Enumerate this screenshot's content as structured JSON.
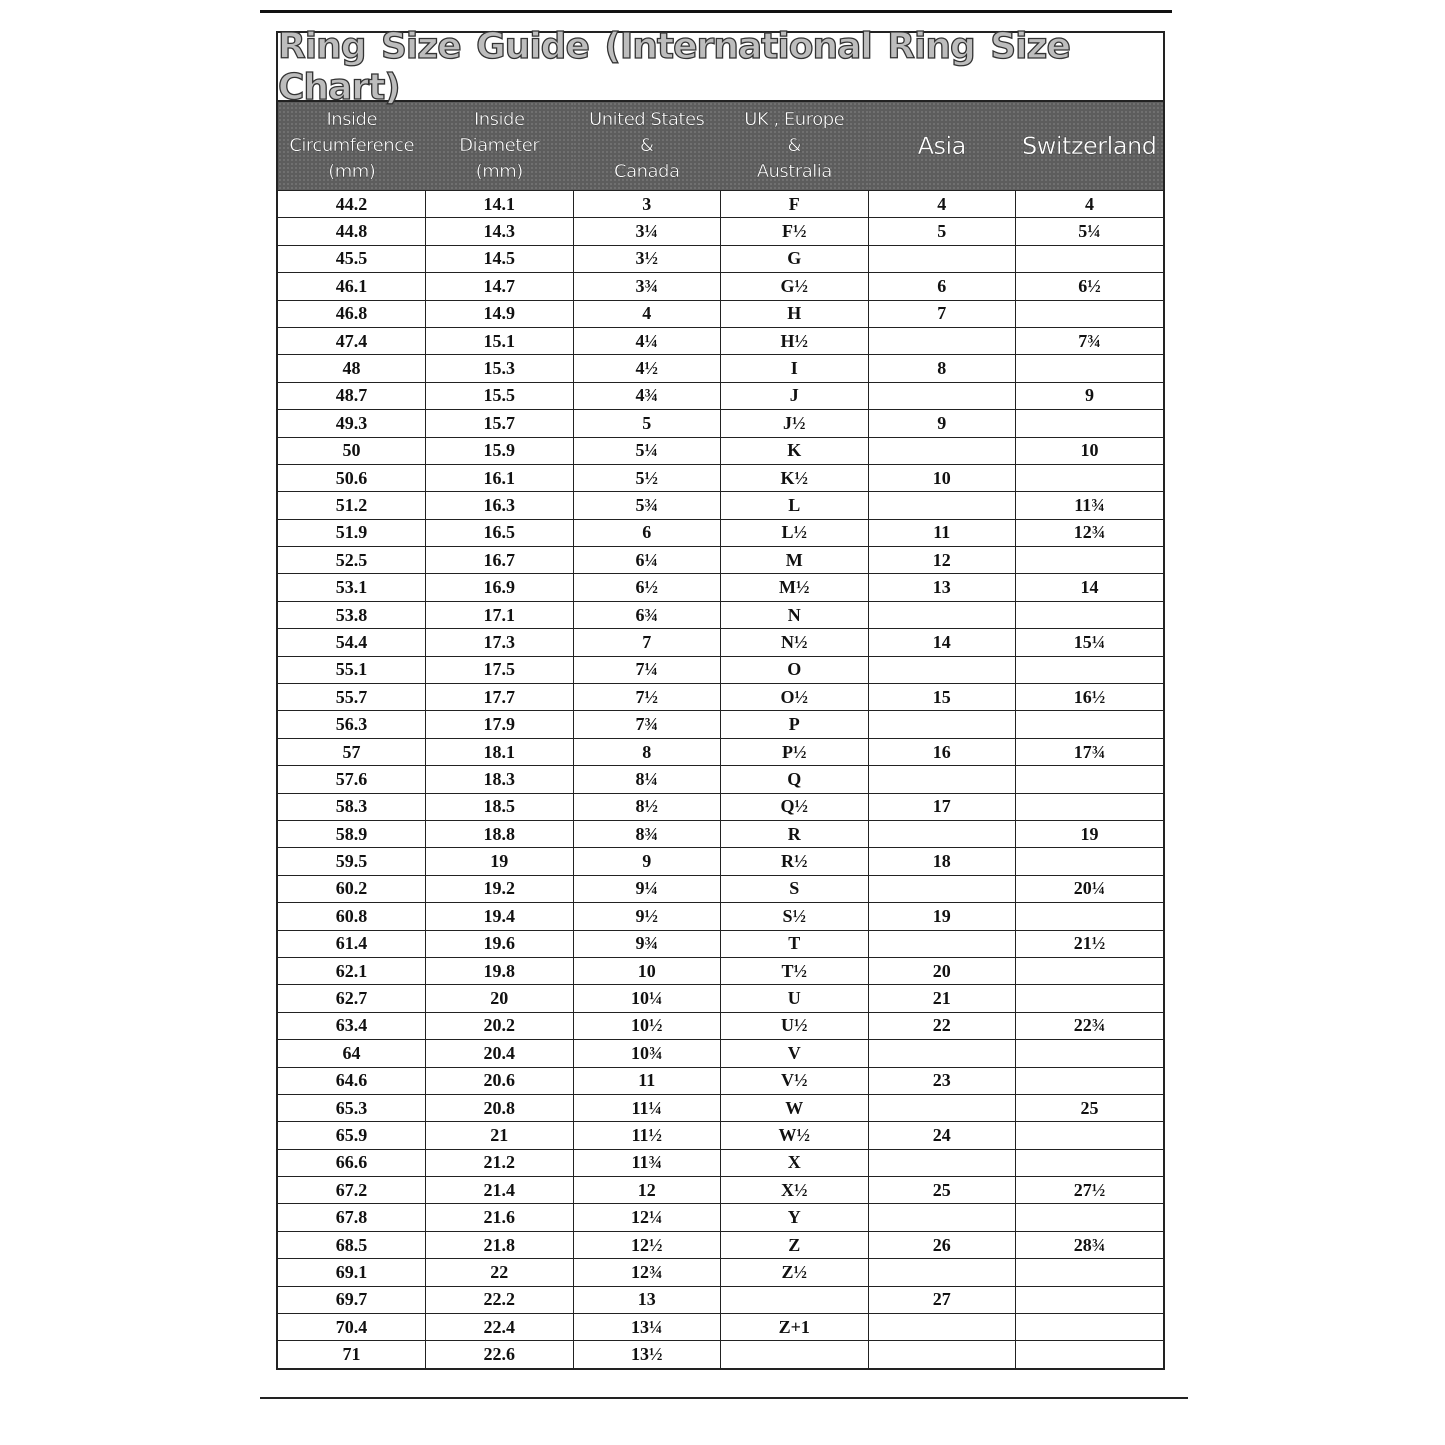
{
  "title": "Ring  Size  Guide (International Ring Size Chart)",
  "headers": [
    [
      "Inside",
      "Circumference",
      "(mm)"
    ],
    [
      "Inside",
      "Diameter",
      "(mm)"
    ],
    [
      "United States",
      "&",
      "Canada"
    ],
    [
      "UK , Europe",
      "&",
      "Australia"
    ],
    [
      "Asia"
    ],
    [
      "Switzerland"
    ]
  ],
  "rows": [
    [
      "44.2",
      "14.1",
      "3",
      "F",
      "4",
      "4"
    ],
    [
      "44.8",
      "14.3",
      "3¼",
      "F½",
      "5",
      "5¼"
    ],
    [
      "45.5",
      "14.5",
      "3½",
      "G",
      "",
      ""
    ],
    [
      "46.1",
      "14.7",
      "3¾",
      "G½",
      "6",
      "6½"
    ],
    [
      "46.8",
      "14.9",
      "4",
      "H",
      "7",
      ""
    ],
    [
      "47.4",
      "15.1",
      "4¼",
      "H½",
      "",
      "7¾"
    ],
    [
      "48",
      "15.3",
      "4½",
      "I",
      "8",
      ""
    ],
    [
      "48.7",
      "15.5",
      "4¾",
      "J",
      "",
      "9"
    ],
    [
      "49.3",
      "15.7",
      "5",
      "J½",
      "9",
      ""
    ],
    [
      "50",
      "15.9",
      "5¼",
      "K",
      "",
      "10"
    ],
    [
      "50.6",
      "16.1",
      "5½",
      "K½",
      "10",
      ""
    ],
    [
      "51.2",
      "16.3",
      "5¾",
      "L",
      "",
      "11¾"
    ],
    [
      "51.9",
      "16.5",
      "6",
      "L½",
      "11",
      "12¾"
    ],
    [
      "52.5",
      "16.7",
      "6¼",
      "M",
      "12",
      ""
    ],
    [
      "53.1",
      "16.9",
      "6½",
      "M½",
      "13",
      "14"
    ],
    [
      "53.8",
      "17.1",
      "6¾",
      "N",
      "",
      ""
    ],
    [
      "54.4",
      "17.3",
      "7",
      "N½",
      "14",
      "15¼"
    ],
    [
      "55.1",
      "17.5",
      "7¼",
      "O",
      "",
      ""
    ],
    [
      "55.7",
      "17.7",
      "7½",
      "O½",
      "15",
      "16½"
    ],
    [
      "56.3",
      "17.9",
      "7¾",
      "P",
      "",
      ""
    ],
    [
      "57",
      "18.1",
      "8",
      "P½",
      "16",
      "17¾"
    ],
    [
      "57.6",
      "18.3",
      "8¼",
      "Q",
      "",
      ""
    ],
    [
      "58.3",
      "18.5",
      "8½",
      "Q½",
      "17",
      ""
    ],
    [
      "58.9",
      "18.8",
      "8¾",
      "R",
      "",
      "19"
    ],
    [
      "59.5",
      "19",
      "9",
      "R½",
      "18",
      ""
    ],
    [
      "60.2",
      "19.2",
      "9¼",
      "S",
      "",
      "20¼"
    ],
    [
      "60.8",
      "19.4",
      "9½",
      "S½",
      "19",
      ""
    ],
    [
      "61.4",
      "19.6",
      "9¾",
      "T",
      "",
      "21½"
    ],
    [
      "62.1",
      "19.8",
      "10",
      "T½",
      "20",
      ""
    ],
    [
      "62.7",
      "20",
      "10¼",
      "U",
      "21",
      ""
    ],
    [
      "63.4",
      "20.2",
      "10½",
      "U½",
      "22",
      "22¾"
    ],
    [
      "64",
      "20.4",
      "10¾",
      "V",
      "",
      ""
    ],
    [
      "64.6",
      "20.6",
      "11",
      "V½",
      "23",
      ""
    ],
    [
      "65.3",
      "20.8",
      "11¼",
      "W",
      "",
      "25"
    ],
    [
      "65.9",
      "21",
      "11½",
      "W½",
      "24",
      ""
    ],
    [
      "66.6",
      "21.2",
      "11¾",
      "X",
      "",
      ""
    ],
    [
      "67.2",
      "21.4",
      "12",
      "X½",
      "25",
      "27½"
    ],
    [
      "67.8",
      "21.6",
      "12¼",
      "Y",
      "",
      ""
    ],
    [
      "68.5",
      "21.8",
      "12½",
      "Z",
      "26",
      "28¾"
    ],
    [
      "69.1",
      "22",
      "12¾",
      "Z½",
      "",
      ""
    ],
    [
      "69.7",
      "22.2",
      "13",
      "",
      "27",
      ""
    ],
    [
      "70.4",
      "22.4",
      "13¼",
      "Z+1",
      "",
      ""
    ],
    [
      "71",
      "22.6",
      "13½",
      "",
      "",
      ""
    ]
  ]
}
